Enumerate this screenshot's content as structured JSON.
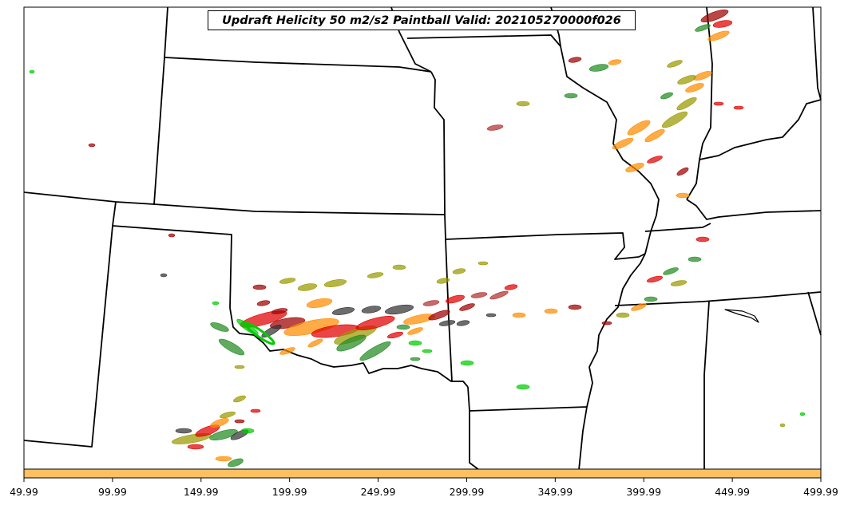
{
  "title": "Updraft Helicity 50 m2/s2 Paintball Valid: 202105270000f026",
  "x_axis": {
    "ticks": [
      "49.99",
      "99.99",
      "149.99",
      "199.99",
      "249.99",
      "299.99",
      "349.99",
      "399.99",
      "449.99",
      "499.99"
    ]
  },
  "colorbar": {
    "color": "#ffc060"
  },
  "member_colors": [
    "#a00000",
    "#e00000",
    "#ff8c00",
    "#9a9a00",
    "#228b22",
    "#00cc00",
    "#333333",
    "#b03030"
  ],
  "background": "#ffffff"
}
